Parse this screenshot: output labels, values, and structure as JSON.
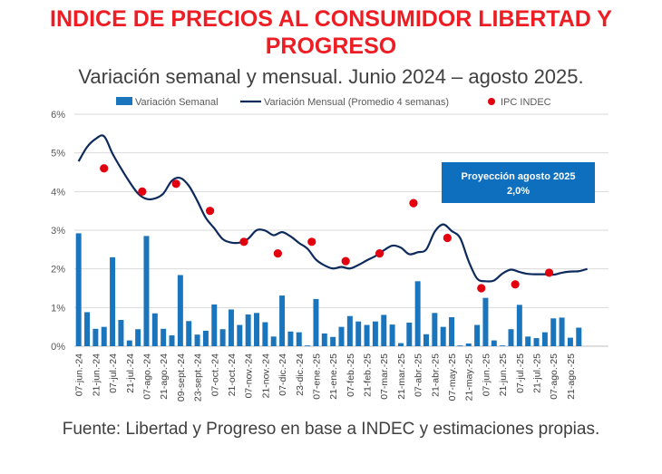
{
  "header": {
    "title": "INDICE DE PRECIOS AL CONSUMIDOR LIBERTAD Y PROGRESO",
    "subtitle": "Variación semanal y mensual. Junio 2024 – agosto 2025."
  },
  "footer": {
    "source": "Fuente: Libertad y Progreso en base a INDEC y estimaciones propias."
  },
  "colors": {
    "title": "#ee1d23",
    "bars": "#1b75bc",
    "line": "#0d2a5c",
    "points": "#e2000f",
    "callout_bg": "#0f6fbf",
    "callout_text": "#ffffff",
    "grid": "#d9d9d9",
    "text": "#404040"
  },
  "chart_data": {
    "type": "bar",
    "title": "INDICE DE PRECIOS AL CONSUMIDOR LIBERTAD Y PROGRESO",
    "subtitle": "Variación semanal y mensual. Junio 2024 – agosto 2025.",
    "legend_position": "top",
    "ylim": [
      0,
      6
    ],
    "yticks": [
      "0%",
      "1%",
      "2%",
      "3%",
      "4%",
      "5%",
      "6%"
    ],
    "grid": "horizontal",
    "weeks": 63,
    "tick_labels": [
      "07-jun.-24",
      "21-jun.-24",
      "07-jul.-24",
      "21-jul.-24",
      "07-ago.-24",
      "21-ago.-24",
      "09-sept.-24",
      "23-sept.-24",
      "07-oct.-24",
      "21-oct.-24",
      "07-nov.-24",
      "21-nov.-24",
      "07-dic.-24",
      "23-dic.-24",
      "07-ene.-25",
      "21-ene.-25",
      "07-feb.-25",
      "21-feb.-25",
      "07-mar.-25",
      "21-mar.-25",
      "07-abr.-25",
      "21-abr.-25",
      "07-may.-25",
      "21-may.-25",
      "07-jun.-25",
      "21-jun.-25",
      "07-jul.-25",
      "21-jul.-25",
      "07-ago.-25",
      "21-ago.-25"
    ],
    "series": [
      {
        "name": "Variación Semanal",
        "type": "bar",
        "values": [
          2.92,
          0.88,
          0.45,
          0.5,
          2.3,
          0.68,
          0.15,
          0.44,
          2.85,
          0.85,
          0.45,
          0.28,
          1.84,
          0.65,
          0.3,
          0.4,
          1.08,
          0.44,
          0.95,
          0.55,
          0.82,
          0.86,
          0.62,
          0.25,
          1.31,
          0.38,
          0.36,
          0.02,
          1.22,
          0.33,
          0.24,
          0.5,
          0.78,
          0.64,
          0.55,
          0.64,
          0.81,
          0.56,
          0.08,
          0.61,
          1.68,
          0.31,
          0.86,
          0.5,
          0.75,
          0.02,
          0.07,
          0.55,
          1.25,
          0.15,
          0.02,
          0.44,
          1.07,
          0.25,
          0.21,
          0.36,
          0.72,
          0.74,
          0.22,
          0.48
        ]
      },
      {
        "name": "Variación Mensual (Promedio 4 semanas)",
        "type": "line",
        "values": [
          4.78,
          5.15,
          5.36,
          5.43,
          4.98,
          4.6,
          4.25,
          3.95,
          3.81,
          3.82,
          3.95,
          4.28,
          4.35,
          4.15,
          3.76,
          3.32,
          3.05,
          2.77,
          2.68,
          2.68,
          2.78,
          3.0,
          2.99,
          2.87,
          2.95,
          2.84,
          2.67,
          2.52,
          2.24,
          2.09,
          2.01,
          2.05,
          2.01,
          2.1,
          2.22,
          2.33,
          2.48,
          2.6,
          2.55,
          2.38,
          2.43,
          2.5,
          2.96,
          3.15,
          2.98,
          2.8,
          2.2,
          1.75,
          1.68,
          1.7,
          1.88,
          1.98,
          1.92,
          1.87,
          1.86,
          1.86,
          1.85,
          1.9,
          1.93,
          1.94,
          2.0
        ]
      },
      {
        "name": "IPC INDEC",
        "type": "scatter",
        "points": [
          {
            "week": 3,
            "value": 4.6
          },
          {
            "week": 7.5,
            "value": 4.0
          },
          {
            "week": 11.5,
            "value": 4.2
          },
          {
            "week": 15.5,
            "value": 3.5
          },
          {
            "week": 19.5,
            "value": 2.7
          },
          {
            "week": 23.5,
            "value": 2.4
          },
          {
            "week": 27.5,
            "value": 2.7
          },
          {
            "week": 31.5,
            "value": 2.2
          },
          {
            "week": 35.5,
            "value": 2.4
          },
          {
            "week": 39.5,
            "value": 3.7
          },
          {
            "week": 43.5,
            "value": 2.8
          },
          {
            "week": 47.5,
            "value": 1.5
          },
          {
            "week": 51.5,
            "value": 1.6
          },
          {
            "week": 55.5,
            "value": 1.9
          }
        ]
      }
    ],
    "annotation": {
      "line1": "Proyección agosto 2025",
      "line2": "2,0%"
    }
  }
}
